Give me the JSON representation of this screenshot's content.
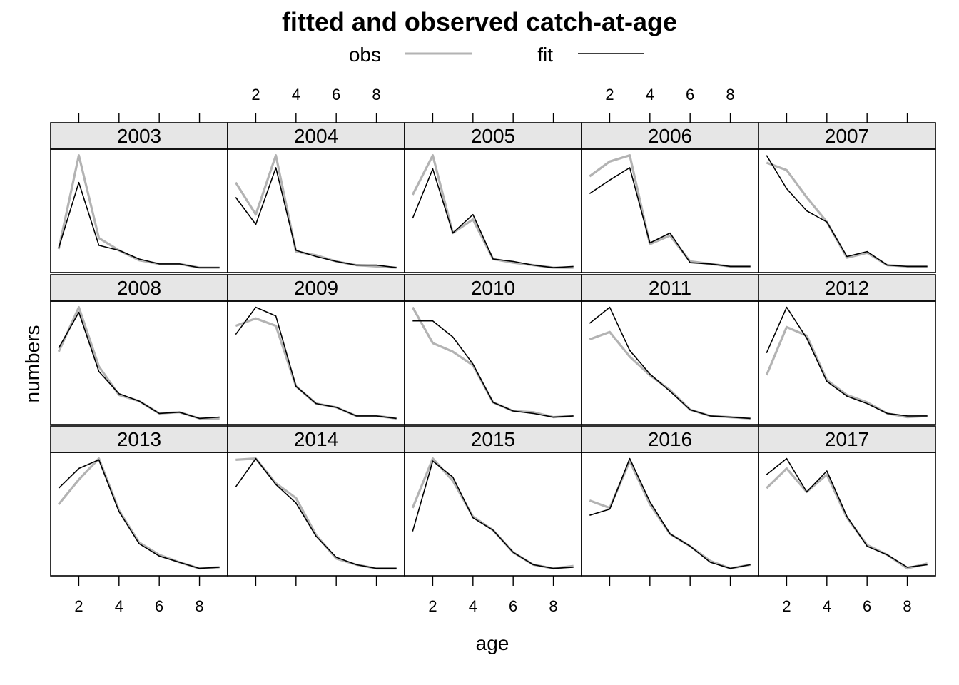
{
  "chart_data": {
    "type": "line",
    "title": "fitted and observed catch-at-age",
    "xlabel": "age",
    "ylabel": "numbers",
    "legend": {
      "position": "top",
      "entries": [
        {
          "name": "obs",
          "color": "#b3b3b3"
        },
        {
          "name": "fit",
          "color": "#000000"
        }
      ]
    },
    "x": [
      1,
      2,
      3,
      4,
      5,
      6,
      7,
      8,
      9
    ],
    "x_ticks": [
      2,
      4,
      6,
      8
    ],
    "xlim": [
      0.6,
      9.4
    ],
    "ylim": [
      0,
      1
    ],
    "layout": {
      "columns": 5,
      "rows": 3
    },
    "panels": [
      {
        "year": "2003",
        "obs": [
          0.19,
          0.95,
          0.28,
          0.18,
          0.1,
          0.07,
          0.07,
          0.04,
          0.04
        ],
        "fit": [
          0.2,
          0.73,
          0.22,
          0.18,
          0.11,
          0.07,
          0.07,
          0.04,
          0.04
        ]
      },
      {
        "year": "2004",
        "obs": [
          0.73,
          0.47,
          0.95,
          0.17,
          0.14,
          0.09,
          0.06,
          0.05,
          0.04
        ],
        "fit": [
          0.61,
          0.39,
          0.85,
          0.18,
          0.13,
          0.09,
          0.06,
          0.06,
          0.04
        ]
      },
      {
        "year": "2005",
        "obs": [
          0.63,
          0.95,
          0.32,
          0.43,
          0.11,
          0.08,
          0.06,
          0.04,
          0.04
        ],
        "fit": [
          0.44,
          0.84,
          0.32,
          0.47,
          0.11,
          0.09,
          0.06,
          0.04,
          0.05
        ]
      },
      {
        "year": "2006",
        "obs": [
          0.78,
          0.9,
          0.95,
          0.23,
          0.3,
          0.09,
          0.07,
          0.05,
          0.05
        ],
        "fit": [
          0.64,
          0.75,
          0.85,
          0.24,
          0.32,
          0.08,
          0.07,
          0.05,
          0.05
        ]
      },
      {
        "year": "2007",
        "obs": [
          0.89,
          0.83,
          0.61,
          0.41,
          0.12,
          0.16,
          0.06,
          0.05,
          0.05
        ],
        "fit": [
          0.95,
          0.68,
          0.5,
          0.41,
          0.13,
          0.17,
          0.06,
          0.05,
          0.05
        ]
      },
      {
        "year": "2008",
        "obs": [
          0.59,
          0.95,
          0.47,
          0.24,
          0.19,
          0.09,
          0.1,
          0.05,
          0.05
        ],
        "fit": [
          0.62,
          0.91,
          0.43,
          0.25,
          0.19,
          0.09,
          0.1,
          0.05,
          0.06
        ]
      },
      {
        "year": "2009",
        "obs": [
          0.8,
          0.86,
          0.8,
          0.31,
          0.17,
          0.14,
          0.07,
          0.07,
          0.05
        ],
        "fit": [
          0.73,
          0.95,
          0.88,
          0.31,
          0.17,
          0.14,
          0.07,
          0.07,
          0.05
        ]
      },
      {
        "year": "2010",
        "obs": [
          0.95,
          0.66,
          0.59,
          0.48,
          0.18,
          0.11,
          0.1,
          0.06,
          0.07
        ],
        "fit": [
          0.84,
          0.84,
          0.71,
          0.49,
          0.18,
          0.11,
          0.09,
          0.06,
          0.07
        ]
      },
      {
        "year": "2011",
        "obs": [
          0.69,
          0.75,
          0.55,
          0.4,
          0.28,
          0.12,
          0.07,
          0.06,
          0.05
        ],
        "fit": [
          0.82,
          0.95,
          0.6,
          0.41,
          0.27,
          0.12,
          0.07,
          0.06,
          0.05
        ]
      },
      {
        "year": "2012",
        "obs": [
          0.4,
          0.79,
          0.72,
          0.36,
          0.24,
          0.18,
          0.09,
          0.06,
          0.07
        ],
        "fit": [
          0.58,
          0.95,
          0.7,
          0.35,
          0.23,
          0.17,
          0.09,
          0.07,
          0.07
        ]
      },
      {
        "year": "2013",
        "obs": [
          0.58,
          0.78,
          0.95,
          0.53,
          0.27,
          0.17,
          0.11,
          0.06,
          0.07
        ],
        "fit": [
          0.71,
          0.87,
          0.94,
          0.52,
          0.26,
          0.16,
          0.11,
          0.06,
          0.07
        ]
      },
      {
        "year": "2014",
        "obs": [
          0.94,
          0.95,
          0.75,
          0.63,
          0.33,
          0.14,
          0.09,
          0.06,
          0.06
        ],
        "fit": [
          0.72,
          0.95,
          0.74,
          0.59,
          0.32,
          0.15,
          0.09,
          0.06,
          0.06
        ]
      },
      {
        "year": "2015",
        "obs": [
          0.55,
          0.95,
          0.77,
          0.48,
          0.37,
          0.19,
          0.09,
          0.06,
          0.08
        ],
        "fit": [
          0.36,
          0.93,
          0.8,
          0.47,
          0.37,
          0.19,
          0.09,
          0.06,
          0.07
        ]
      },
      {
        "year": "2016",
        "obs": [
          0.61,
          0.55,
          0.93,
          0.58,
          0.34,
          0.24,
          0.12,
          0.06,
          0.09
        ],
        "fit": [
          0.49,
          0.54,
          0.95,
          0.6,
          0.34,
          0.24,
          0.11,
          0.06,
          0.09
        ]
      },
      {
        "year": "2017",
        "obs": [
          0.71,
          0.87,
          0.68,
          0.82,
          0.47,
          0.25,
          0.17,
          0.06,
          0.1
        ],
        "fit": [
          0.82,
          0.95,
          0.68,
          0.85,
          0.48,
          0.24,
          0.17,
          0.07,
          0.09
        ]
      }
    ]
  }
}
